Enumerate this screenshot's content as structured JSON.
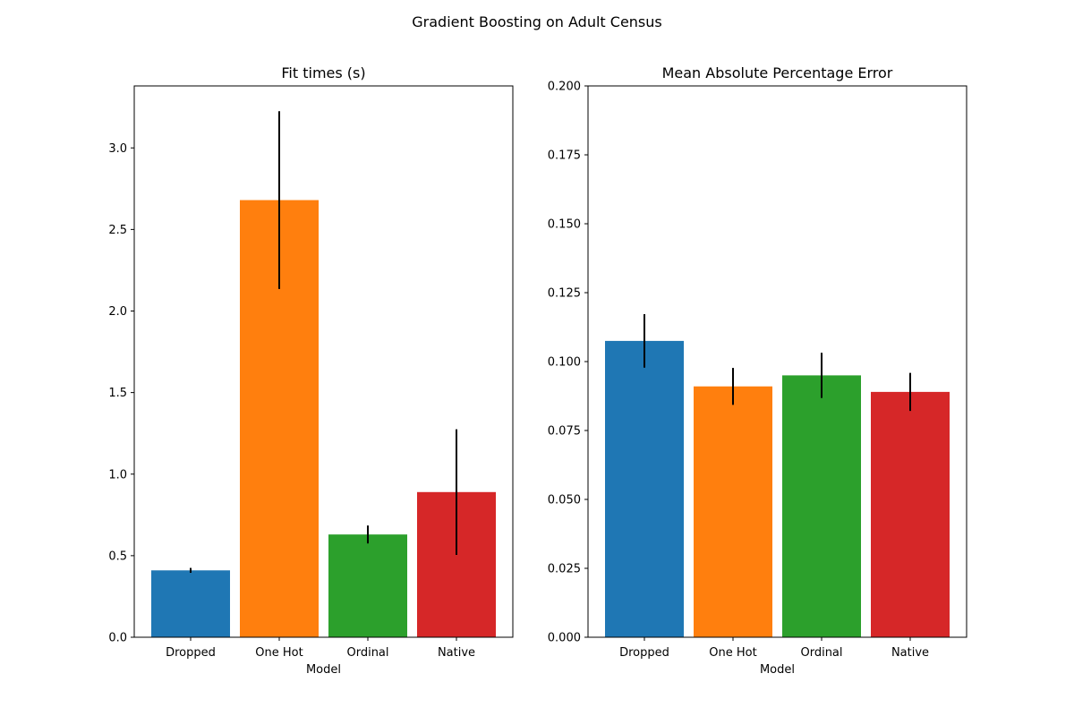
{
  "figure": {
    "title": "Gradient Boosting on Adult Census"
  },
  "chart_data": [
    {
      "type": "bar",
      "title": "Fit times (s)",
      "xlabel": "Model",
      "ylabel": "",
      "categories": [
        "Dropped",
        "One Hot",
        "Ordinal",
        "Native"
      ],
      "values": [
        0.41,
        2.68,
        0.63,
        0.89
      ],
      "error": [
        0.015,
        0.545,
        0.055,
        0.385
      ],
      "colors": [
        "#1f77b4",
        "#ff7f0e",
        "#2ca02c",
        "#d62728"
      ],
      "ylim": [
        0,
        3.38
      ],
      "yticks": [
        0.0,
        0.5,
        1.0,
        1.5,
        2.0,
        2.5,
        3.0
      ],
      "ytick_labels": [
        "0.0",
        "0.5",
        "1.0",
        "1.5",
        "2.0",
        "2.5",
        "3.0"
      ],
      "grid": false,
      "legend": "none"
    },
    {
      "type": "bar",
      "title": "Mean Absolute Percentage Error",
      "xlabel": "Model",
      "ylabel": "",
      "categories": [
        "Dropped",
        "One Hot",
        "Ordinal",
        "Native"
      ],
      "values": [
        0.1075,
        0.091,
        0.095,
        0.089
      ],
      "error": [
        0.0097,
        0.0067,
        0.0082,
        0.0069
      ],
      "colors": [
        "#1f77b4",
        "#ff7f0e",
        "#2ca02c",
        "#d62728"
      ],
      "ylim": [
        0,
        0.2
      ],
      "yticks": [
        0.0,
        0.025,
        0.05,
        0.075,
        0.1,
        0.125,
        0.15,
        0.175,
        0.2
      ],
      "ytick_labels": [
        "0.000",
        "0.025",
        "0.050",
        "0.075",
        "0.100",
        "0.125",
        "0.150",
        "0.175",
        "0.200"
      ],
      "grid": false,
      "legend": "none"
    }
  ]
}
